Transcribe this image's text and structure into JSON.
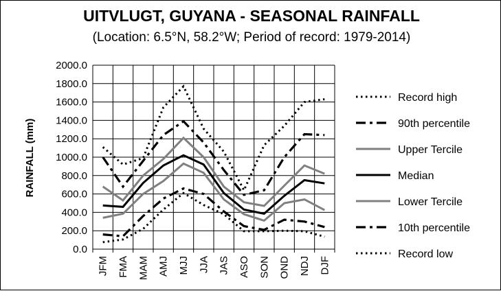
{
  "chart_data": {
    "type": "line",
    "title": "UITVLUGT, GUYANA - SEASONAL RAINFALL",
    "subtitle": "(Location: 6.5°N, 58.2°W; Period of record: 1979-2014)",
    "ylabel": "RAINFALL (mm)",
    "xlabel": "",
    "ylim": [
      0,
      2000
    ],
    "y_ticks": [
      "2000.0",
      "1800.0",
      "1600.0",
      "1400.0",
      "1200.0",
      "1000.0",
      "800.0",
      "600.0",
      "400.0",
      "200.0",
      "0.0"
    ],
    "categories": [
      "JFM",
      "FMA",
      "MAM",
      "AMJ",
      "MJJ",
      "JJA",
      "JAS",
      "ASO",
      "SON",
      "OND",
      "NDJ",
      "DJF"
    ],
    "grid": true,
    "legend_position": "right",
    "series": [
      {
        "name": "Record high",
        "style": "dotted",
        "color": "#000000",
        "values": [
          1110,
          920,
          990,
          1540,
          1770,
          1310,
          1060,
          640,
          1130,
          1340,
          1600,
          1630
        ]
      },
      {
        "name": "90th percentile",
        "style": "dashdot",
        "color": "#000000",
        "values": [
          1000,
          680,
          960,
          1240,
          1390,
          1160,
          860,
          590,
          640,
          1000,
          1250,
          1240
        ]
      },
      {
        "name": "Upper Tercile",
        "style": "solid",
        "color": "#808080",
        "values": [
          680,
          530,
          800,
          980,
          1210,
          1000,
          680,
          510,
          470,
          690,
          910,
          820
        ]
      },
      {
        "name": "Median",
        "style": "solid",
        "color": "#000000",
        "values": [
          475,
          460,
          720,
          910,
          1020,
          920,
          610,
          430,
          385,
          580,
          750,
          715
        ]
      },
      {
        "name": "Lower Tercile",
        "style": "solid",
        "color": "#808080",
        "values": [
          340,
          385,
          600,
          740,
          930,
          830,
          540,
          380,
          310,
          500,
          540,
          425
        ]
      },
      {
        "name": "10th percentile",
        "style": "dashdot",
        "color": "#000000",
        "values": [
          160,
          140,
          360,
          550,
          660,
          600,
          410,
          250,
          210,
          320,
          300,
          240
        ]
      },
      {
        "name": "Record low",
        "style": "dotted",
        "color": "#000000",
        "values": [
          75,
          105,
          220,
          430,
          610,
          480,
          380,
          195,
          195,
          200,
          195,
          135
        ]
      }
    ]
  }
}
